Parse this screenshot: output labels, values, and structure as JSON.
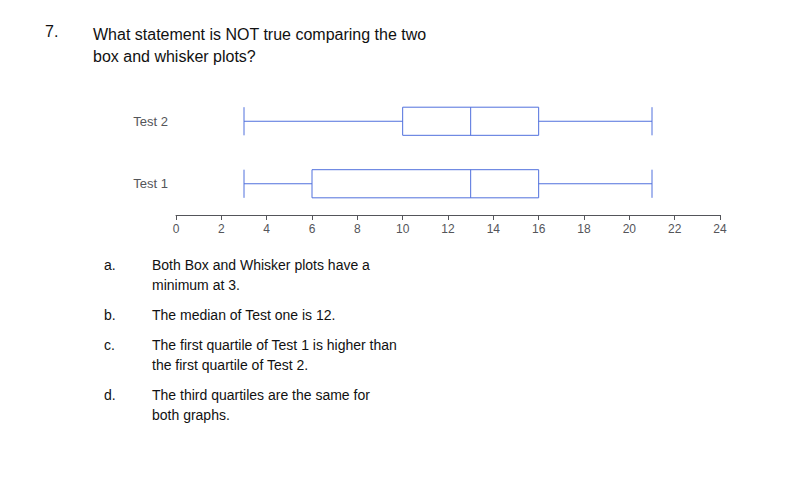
{
  "chart_data": {
    "type": "boxplot",
    "title_number": "7.",
    "title": "What statement is NOT true comparing the two\nbox and whisker plots?",
    "orientation": "horizontal",
    "categories": [
      "Test 2",
      "Test 1"
    ],
    "values": [
      [
        3,
        10,
        13,
        16,
        21
      ],
      [
        3,
        6,
        13,
        16,
        21
      ]
    ],
    "xlim": [
      0,
      24
    ],
    "xticks": [
      0,
      2,
      4,
      6,
      8,
      10,
      12,
      14,
      16,
      18,
      20,
      22,
      24
    ],
    "grid": false,
    "annotations": [
      {
        "label": "a.",
        "lines": [
          "Both Box and Whisker plots have a",
          "minimum at 3."
        ]
      },
      {
        "label": "b.",
        "lines": [
          "The median of Test one is 12."
        ]
      },
      {
        "label": "c.",
        "lines": [
          "The first quartile of Test 1 is higher than",
          "the first quartile of Test 2."
        ]
      },
      {
        "label": "d.",
        "lines": [
          "The third quartiles are the same for",
          "both graphs."
        ]
      }
    ]
  }
}
